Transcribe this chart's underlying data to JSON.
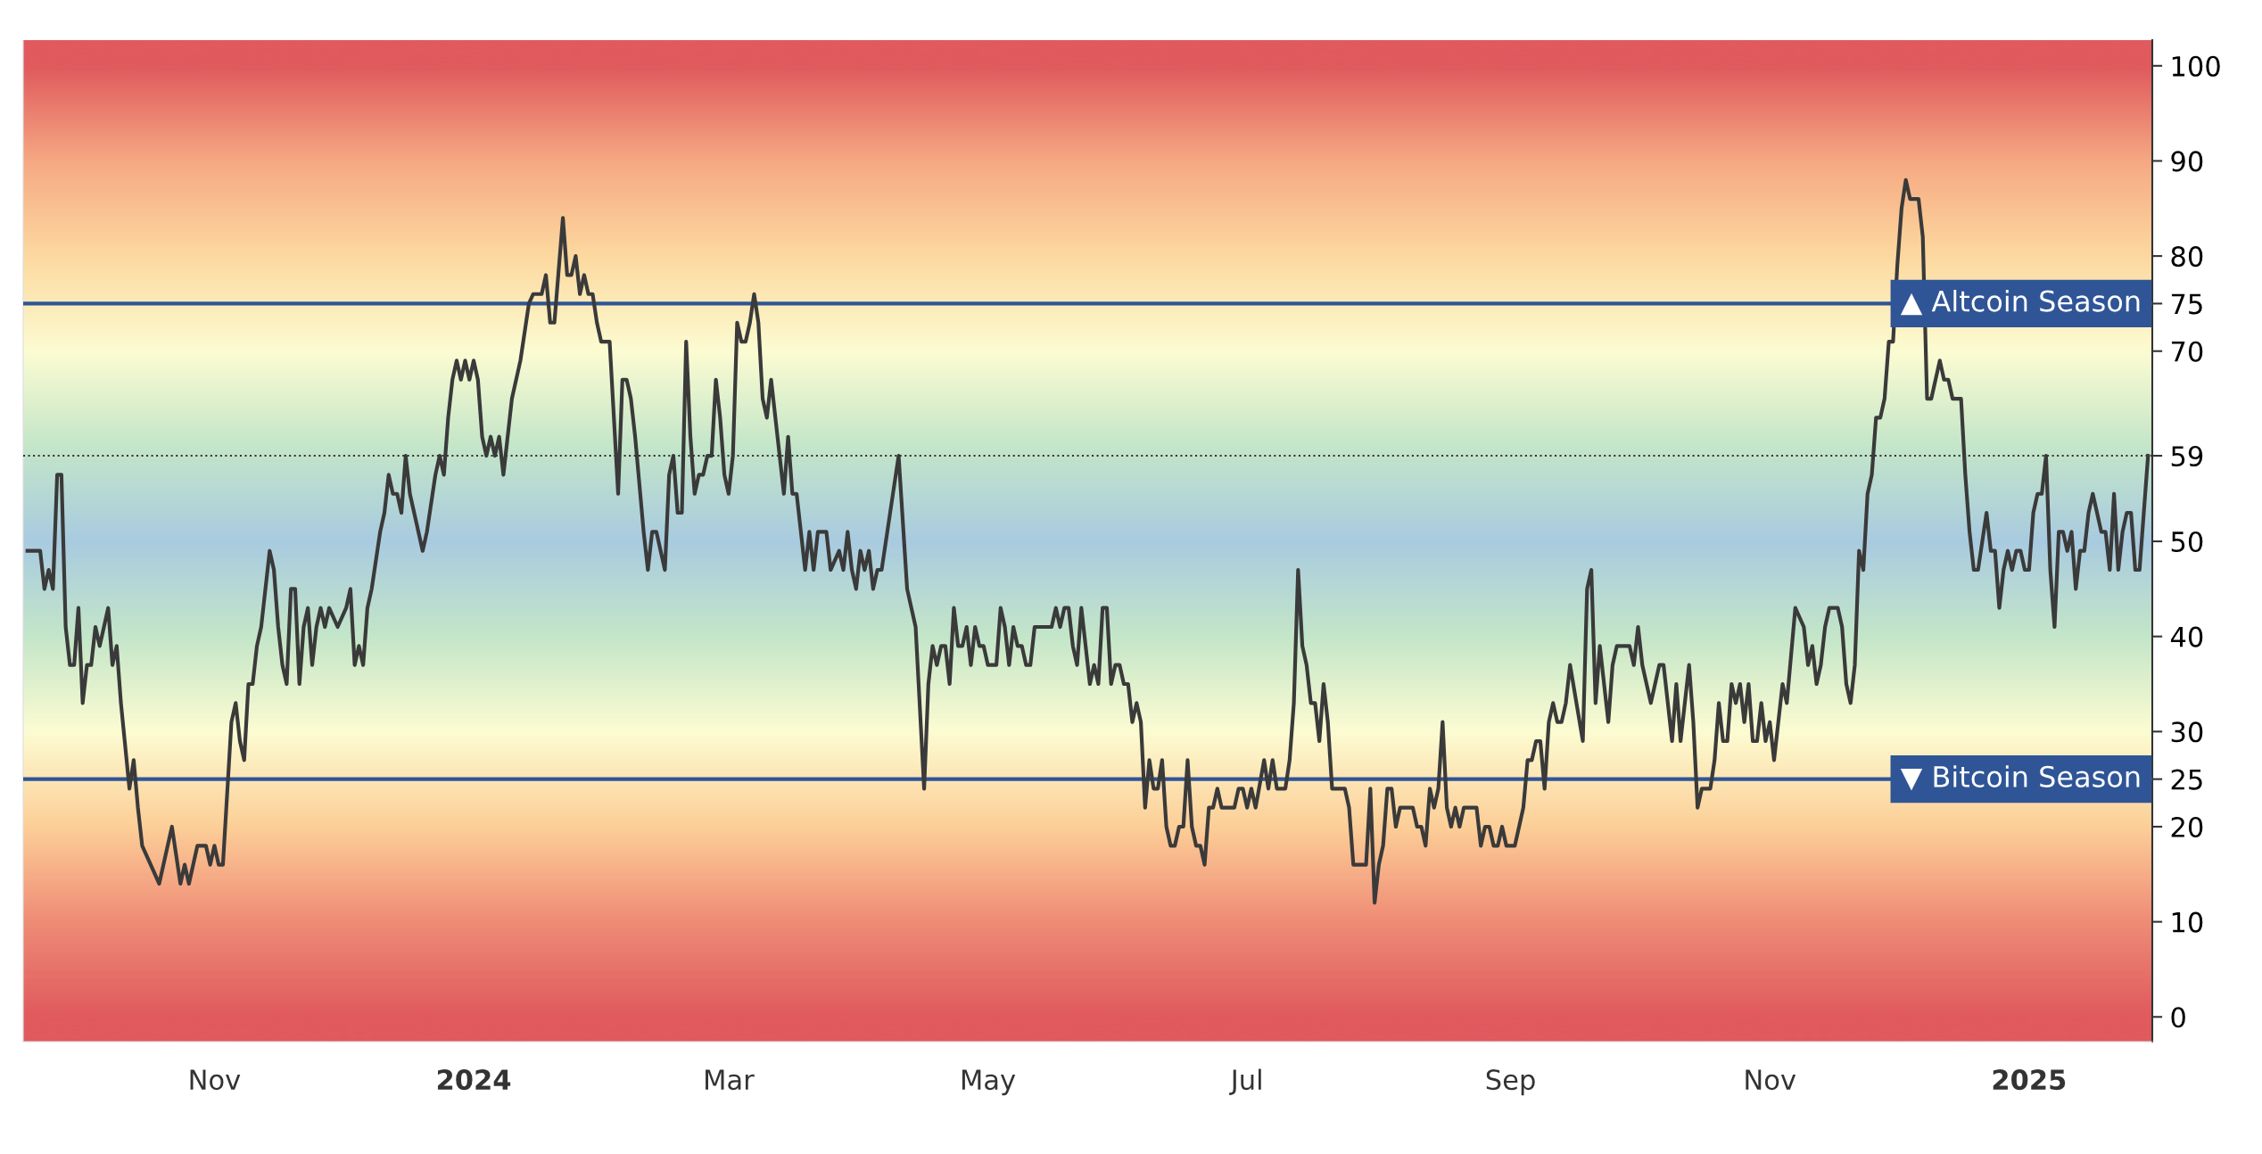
{
  "chart_data": {
    "type": "line",
    "color": "#3a3a3a",
    "line_style": "solid",
    "marker": "none",
    "grid": false,
    "legend": false,
    "x": [
      "2023-09-18",
      "2023-09-21",
      "2023-09-22",
      "2023-09-23",
      "2023-09-24",
      "2023-09-25",
      "2023-09-26",
      "2023-09-27",
      "2023-09-28",
      "2023-09-29",
      "2023-09-30",
      "2023-10-01",
      "2023-10-02",
      "2023-10-03",
      "2023-10-04",
      "2023-10-05",
      "2023-10-07",
      "2023-10-08",
      "2023-10-09",
      "2023-10-10",
      "2023-10-12",
      "2023-10-13",
      "2023-10-14",
      "2023-10-15",
      "2023-10-17",
      "2023-10-19",
      "2023-10-21",
      "2023-10-22",
      "2023-10-24",
      "2023-10-25",
      "2023-10-26",
      "2023-10-28",
      "2023-10-30",
      "2023-10-31",
      "2023-11-01",
      "2023-11-02",
      "2023-11-03",
      "2023-11-05",
      "2023-11-06",
      "2023-11-07",
      "2023-11-08",
      "2023-11-09",
      "2023-11-10",
      "2023-11-11",
      "2023-11-12",
      "2023-11-14",
      "2023-11-15",
      "2023-11-16",
      "2023-11-17",
      "2023-11-18",
      "2023-11-19",
      "2023-11-20",
      "2023-11-21",
      "2023-11-22",
      "2023-11-23",
      "2023-11-24",
      "2023-11-25",
      "2023-11-26",
      "2023-11-27",
      "2023-11-28",
      "2023-11-30",
      "2023-12-02",
      "2023-12-03",
      "2023-12-04",
      "2023-12-05",
      "2023-12-06",
      "2023-12-07",
      "2023-12-08",
      "2023-12-10",
      "2023-12-11",
      "2023-12-12",
      "2023-12-13",
      "2023-12-14",
      "2023-12-15",
      "2023-12-16",
      "2023-12-17",
      "2023-12-18",
      "2023-12-20",
      "2023-12-21",
      "2023-12-23",
      "2023-12-24",
      "2023-12-25",
      "2023-12-26",
      "2023-12-27",
      "2023-12-28",
      "2023-12-29",
      "2023-12-30",
      "2023-12-31",
      "2024-01-01",
      "2024-01-02",
      "2024-01-03",
      "2024-01-04",
      "2024-01-05",
      "2024-01-06",
      "2024-01-07",
      "2024-01-08",
      "2024-01-10",
      "2024-01-12",
      "2024-01-14",
      "2024-01-15",
      "2024-01-17",
      "2024-01-18",
      "2024-01-19",
      "2024-01-20",
      "2024-01-22",
      "2024-01-23",
      "2024-01-24",
      "2024-01-25",
      "2024-01-26",
      "2024-01-27",
      "2024-01-28",
      "2024-01-29",
      "2024-01-30",
      "2024-01-31",
      "2024-02-02",
      "2024-02-03",
      "2024-02-04",
      "2024-02-05",
      "2024-02-06",
      "2024-02-07",
      "2024-02-08",
      "2024-02-10",
      "2024-02-11",
      "2024-02-12",
      "2024-02-13",
      "2024-02-14",
      "2024-02-15",
      "2024-02-16",
      "2024-02-17",
      "2024-02-18",
      "2024-02-19",
      "2024-02-20",
      "2024-02-21",
      "2024-02-22",
      "2024-02-23",
      "2024-02-24",
      "2024-02-25",
      "2024-02-26",
      "2024-02-27",
      "2024-02-28",
      "2024-02-29",
      "2024-03-01",
      "2024-03-02",
      "2024-03-03",
      "2024-03-04",
      "2024-03-05",
      "2024-03-06",
      "2024-03-07",
      "2024-03-08",
      "2024-03-09",
      "2024-03-10",
      "2024-03-11",
      "2024-03-13",
      "2024-03-14",
      "2024-03-15",
      "2024-03-16",
      "2024-03-17",
      "2024-03-18",
      "2024-03-19",
      "2024-03-20",
      "2024-03-21",
      "2024-03-22",
      "2024-03-24",
      "2024-03-25",
      "2024-03-27",
      "2024-03-28",
      "2024-03-29",
      "2024-03-30",
      "2024-03-31",
      "2024-04-01",
      "2024-04-02",
      "2024-04-03",
      "2024-04-04",
      "2024-04-05",
      "2024-04-06",
      "2024-04-08",
      "2024-04-10",
      "2024-04-12",
      "2024-04-14",
      "2024-04-16",
      "2024-04-17",
      "2024-04-18",
      "2024-04-19",
      "2024-04-20",
      "2024-04-21",
      "2024-04-22",
      "2024-04-23",
      "2024-04-24",
      "2024-04-25",
      "2024-04-26",
      "2024-04-27",
      "2024-04-28",
      "2024-04-29",
      "2024-04-30",
      "2024-05-01",
      "2024-05-03",
      "2024-05-04",
      "2024-05-05",
      "2024-05-06",
      "2024-05-07",
      "2024-05-08",
      "2024-05-09",
      "2024-05-10",
      "2024-05-11",
      "2024-05-12",
      "2024-05-16",
      "2024-05-17",
      "2024-05-18",
      "2024-05-19",
      "2024-05-20",
      "2024-05-21",
      "2024-05-22",
      "2024-05-23",
      "2024-05-24",
      "2024-05-25",
      "2024-05-26",
      "2024-05-27",
      "2024-05-28",
      "2024-05-29",
      "2024-05-30",
      "2024-05-31",
      "2024-06-01",
      "2024-06-02",
      "2024-06-03",
      "2024-06-04",
      "2024-06-05",
      "2024-06-06",
      "2024-06-07",
      "2024-06-08",
      "2024-06-09",
      "2024-06-10",
      "2024-06-11",
      "2024-06-12",
      "2024-06-13",
      "2024-06-14",
      "2024-06-15",
      "2024-06-16",
      "2024-06-17",
      "2024-06-18",
      "2024-06-19",
      "2024-06-20",
      "2024-06-21",
      "2024-06-22",
      "2024-06-23",
      "2024-06-24",
      "2024-06-25",
      "2024-06-28",
      "2024-06-29",
      "2024-06-30",
      "2024-07-01",
      "2024-07-02",
      "2024-07-03",
      "2024-07-05",
      "2024-07-06",
      "2024-07-07",
      "2024-07-08",
      "2024-07-10",
      "2024-07-11",
      "2024-07-12",
      "2024-07-13",
      "2024-07-14",
      "2024-07-15",
      "2024-07-16",
      "2024-07-17",
      "2024-07-18",
      "2024-07-19",
      "2024-07-20",
      "2024-07-21",
      "2024-07-24",
      "2024-07-25",
      "2024-07-26",
      "2024-07-29",
      "2024-07-30",
      "2024-07-31",
      "2024-08-01",
      "2024-08-02",
      "2024-08-03",
      "2024-08-04",
      "2024-08-05",
      "2024-08-06",
      "2024-08-09",
      "2024-08-10",
      "2024-08-11",
      "2024-08-12",
      "2024-08-13",
      "2024-08-14",
      "2024-08-15",
      "2024-08-16",
      "2024-08-17",
      "2024-08-18",
      "2024-08-19",
      "2024-08-20",
      "2024-08-21",
      "2024-08-24",
      "2024-08-25",
      "2024-08-26",
      "2024-08-27",
      "2024-08-28",
      "2024-08-29",
      "2024-08-30",
      "2024-08-31",
      "2024-09-02",
      "2024-09-03",
      "2024-09-04",
      "2024-09-05",
      "2024-09-06",
      "2024-09-07",
      "2024-09-08",
      "2024-09-09",
      "2024-09-10",
      "2024-09-11",
      "2024-09-12",
      "2024-09-13",
      "2024-09-14",
      "2024-09-15",
      "2024-09-18",
      "2024-09-19",
      "2024-09-20",
      "2024-09-21",
      "2024-09-22",
      "2024-09-24",
      "2024-09-25",
      "2024-09-26",
      "2024-09-29",
      "2024-09-30",
      "2024-10-01",
      "2024-10-02",
      "2024-10-04",
      "2024-10-06",
      "2024-10-07",
      "2024-10-09",
      "2024-10-10",
      "2024-10-11",
      "2024-10-13",
      "2024-10-14",
      "2024-10-15",
      "2024-10-16",
      "2024-10-18",
      "2024-10-19",
      "2024-10-20",
      "2024-10-21",
      "2024-10-22",
      "2024-10-23",
      "2024-10-24",
      "2024-10-25",
      "2024-10-26",
      "2024-10-27",
      "2024-10-28",
      "2024-10-29",
      "2024-10-30",
      "2024-10-31",
      "2024-11-01",
      "2024-11-02",
      "2024-11-04",
      "2024-11-05",
      "2024-11-07",
      "2024-11-09",
      "2024-11-10",
      "2024-11-11",
      "2024-11-12",
      "2024-11-13",
      "2024-11-14",
      "2024-11-15",
      "2024-11-17",
      "2024-11-18",
      "2024-11-19",
      "2024-11-20",
      "2024-11-21",
      "2024-11-22",
      "2024-11-23",
      "2024-11-24",
      "2024-11-25",
      "2024-11-26",
      "2024-11-27",
      "2024-11-28",
      "2024-11-29",
      "2024-11-30",
      "2024-12-01",
      "2024-12-02",
      "2024-12-03",
      "2024-12-04",
      "2024-12-06",
      "2024-12-07",
      "2024-12-08",
      "2024-12-09",
      "2024-12-11",
      "2024-12-12",
      "2024-12-13",
      "2024-12-14",
      "2024-12-16",
      "2024-12-17",
      "2024-12-18",
      "2024-12-19",
      "2024-12-20",
      "2024-12-22",
      "2024-12-23",
      "2024-12-24",
      "2024-12-25",
      "2024-12-26",
      "2024-12-27",
      "2024-12-28",
      "2024-12-29",
      "2024-12-30",
      "2024-12-31",
      "2025-01-01",
      "2025-01-02",
      "2025-01-03",
      "2025-01-04",
      "2025-01-05",
      "2025-01-06",
      "2025-01-07",
      "2025-01-08",
      "2025-01-09",
      "2025-01-10",
      "2025-01-11",
      "2025-01-12",
      "2025-01-13",
      "2025-01-14",
      "2025-01-15",
      "2025-01-16",
      "2025-01-17",
      "2025-01-18",
      "2025-01-19",
      "2025-01-20",
      "2025-01-21",
      "2025-01-22",
      "2025-01-23",
      "2025-01-24",
      "2025-01-25",
      "2025-01-26",
      "2025-01-27",
      "2025-01-29"
    ],
    "values": [
      49,
      49,
      45,
      47,
      45,
      57,
      57,
      41,
      37,
      37,
      43,
      33,
      37,
      37,
      41,
      39,
      43,
      37,
      39,
      33,
      24,
      27,
      22,
      18,
      16,
      14,
      18,
      20,
      14,
      16,
      14,
      18,
      18,
      16,
      18,
      16,
      16,
      31,
      33,
      29,
      27,
      35,
      35,
      39,
      41,
      49,
      47,
      41,
      37,
      35,
      45,
      45,
      35,
      41,
      43,
      37,
      41,
      43,
      41,
      43,
      41,
      43,
      45,
      37,
      39,
      37,
      43,
      45,
      51,
      53,
      57,
      55,
      55,
      53,
      59,
      55,
      53,
      49,
      51,
      57,
      59,
      57,
      63,
      67,
      69,
      67,
      69,
      67,
      69,
      67,
      61,
      59,
      61,
      59,
      61,
      57,
      65,
      69,
      75,
      76,
      76,
      78,
      73,
      73,
      84,
      78,
      78,
      80,
      76,
      78,
      76,
      76,
      73,
      71,
      71,
      63,
      55,
      67,
      67,
      65,
      61,
      51,
      47,
      51,
      51,
      49,
      47,
      57,
      59,
      53,
      53,
      71,
      61,
      55,
      57,
      57,
      59,
      59,
      67,
      63,
      57,
      55,
      59,
      73,
      71,
      71,
      73,
      76,
      73,
      65,
      63,
      67,
      59,
      55,
      61,
      55,
      55,
      51,
      47,
      51,
      47,
      51,
      51,
      47,
      49,
      47,
      51,
      47,
      45,
      49,
      47,
      49,
      45,
      47,
      47,
      53,
      59,
      45,
      41,
      24,
      35,
      39,
      37,
      39,
      39,
      35,
      43,
      39,
      39,
      41,
      37,
      41,
      39,
      39,
      37,
      37,
      43,
      41,
      37,
      41,
      39,
      39,
      37,
      37,
      41,
      41,
      43,
      41,
      43,
      43,
      39,
      37,
      43,
      39,
      35,
      37,
      35,
      43,
      43,
      35,
      37,
      37,
      35,
      35,
      31,
      33,
      31,
      22,
      27,
      24,
      24,
      27,
      20,
      18,
      18,
      20,
      20,
      27,
      20,
      18,
      18,
      16,
      22,
      22,
      24,
      22,
      22,
      24,
      24,
      22,
      24,
      22,
      27,
      24,
      27,
      24,
      24,
      27,
      33,
      47,
      39,
      37,
      33,
      33,
      29,
      35,
      31,
      24,
      24,
      22,
      16,
      16,
      24,
      12,
      16,
      18,
      24,
      24,
      20,
      22,
      22,
      20,
      20,
      18,
      24,
      22,
      24,
      31,
      22,
      20,
      22,
      20,
      22,
      22,
      18,
      20,
      20,
      18,
      18,
      20,
      18,
      18,
      20,
      22,
      27,
      27,
      29,
      29,
      24,
      31,
      33,
      31,
      31,
      33,
      37,
      29,
      45,
      47,
      33,
      39,
      31,
      37,
      39,
      39,
      37,
      41,
      37,
      33,
      37,
      37,
      29,
      35,
      29,
      37,
      31,
      22,
      24,
      24,
      27,
      33,
      29,
      29,
      35,
      33,
      35,
      31,
      35,
      29,
      29,
      33,
      29,
      31,
      27,
      35,
      33,
      43,
      41,
      37,
      39,
      35,
      37,
      41,
      43,
      43,
      41,
      35,
      33,
      37,
      49,
      47,
      55,
      57,
      63,
      63,
      65,
      71,
      71,
      79,
      85,
      88,
      86,
      86,
      82,
      65,
      65,
      69,
      67,
      67,
      65,
      65,
      57,
      51,
      47,
      47,
      53,
      49,
      49,
      43,
      47,
      49,
      47,
      49,
      49,
      47,
      47,
      53,
      55,
      55,
      59,
      47,
      41,
      51,
      51,
      49,
      51,
      45,
      49,
      49,
      53,
      55,
      53,
      51,
      51,
      47,
      55,
      47,
      51,
      53,
      53,
      47,
      47,
      59
    ],
    "xlim": [
      "2023-09-17",
      "2025-01-30"
    ],
    "xticks": [
      {
        "value": "2023-11-01",
        "label": "Nov"
      },
      {
        "value": "2024-01-01",
        "label": "2024"
      },
      {
        "value": "2024-03-01",
        "label": "Mar"
      },
      {
        "value": "2024-05-01",
        "label": "May"
      },
      {
        "value": "2024-07-01",
        "label": "Jul"
      },
      {
        "value": "2024-09-01",
        "label": "Sep"
      },
      {
        "value": "2024-11-01",
        "label": "Nov"
      },
      {
        "value": "2025-01-01",
        "label": "2025"
      }
    ],
    "ylim": [
      -2.6,
      102.7
    ],
    "yticks": [
      0,
      10,
      20,
      25,
      30,
      40,
      50,
      59,
      70,
      75,
      80,
      90,
      100
    ],
    "ref_lines": [
      {
        "axis": "y",
        "value": 75,
        "label": "▲ Altcoin Season",
        "color": "#2f5597",
        "line_style": "solid"
      },
      {
        "axis": "y",
        "value": 25,
        "label": "▼ Bitcoin Season",
        "color": "#2f5597",
        "line_style": "solid"
      },
      {
        "axis": "y",
        "value": 59,
        "label": "59",
        "color": "#333333",
        "line_style": "dotted"
      }
    ]
  }
}
